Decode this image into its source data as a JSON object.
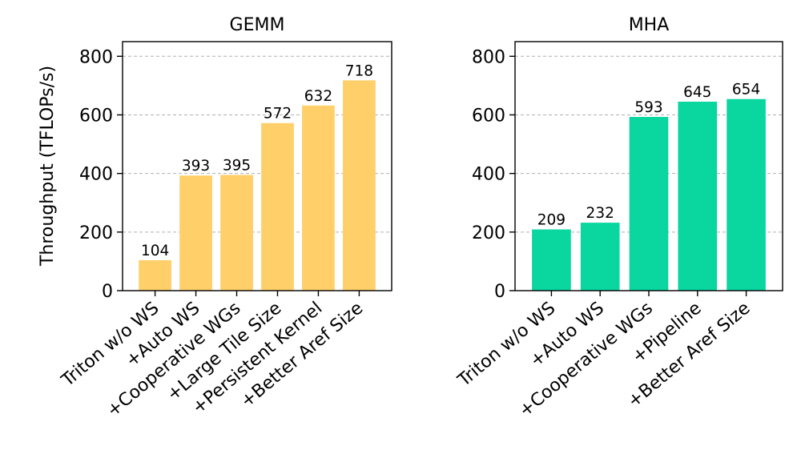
{
  "chart_data": [
    {
      "type": "bar",
      "title": "GEMM",
      "ylabel": "Throughput (TFLOPs/s)",
      "xlabel": "",
      "ylim": [
        0,
        850
      ],
      "yticks": [
        0,
        200,
        400,
        600,
        800
      ],
      "grid": "y",
      "color": "#FFD06A",
      "categories": [
        "Triton w/o WS",
        "+Auto WS",
        "+Cooperative WGs",
        "+Large Tile Size",
        "+Persistent Kernel",
        "+Better Aref Size"
      ],
      "values": [
        104,
        393,
        395,
        572,
        632,
        718
      ]
    },
    {
      "type": "bar",
      "title": "MHA",
      "ylabel": "",
      "xlabel": "",
      "ylim": [
        0,
        850
      ],
      "yticks": [
        0,
        200,
        400,
        600,
        800
      ],
      "grid": "y",
      "color": "#0AD6A0",
      "categories": [
        "Triton w/o WS",
        "+Auto WS",
        "+Cooperative WGs",
        "+Pipeline",
        "+Better Aref Size"
      ],
      "values": [
        209,
        232,
        593,
        645,
        654
      ]
    }
  ]
}
